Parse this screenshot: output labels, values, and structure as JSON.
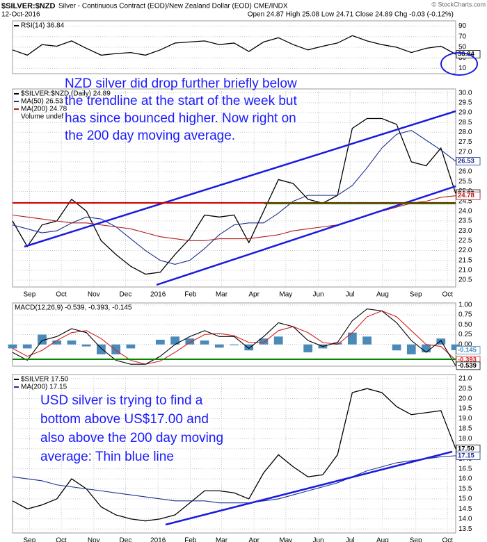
{
  "header": {
    "symbol": "$SILVER:$NZD",
    "description": "Silver - Continuous Contract (EOD)/New Zealand Dollar (EOD) CME/INDX",
    "copyright": "© StockCharts.com",
    "date": "12-Oct-2016",
    "quote": "Open 24.87 High 25.08 Low 24.71 Close 24.89 Chg -0.03 (-0.12%)"
  },
  "chart_data": [
    {
      "type": "line",
      "xlim": [
        0,
        30
      ],
      "ylim": [
        0,
        100
      ],
      "yticks": [
        90,
        70,
        50,
        30,
        10
      ],
      "grid": true,
      "series": [
        {
          "name": "RSI(14) 36.84",
          "color": "#000000",
          "values": [
            45,
            35,
            55,
            52,
            62,
            48,
            35,
            38,
            40,
            35,
            45,
            58,
            60,
            62,
            55,
            58,
            42,
            60,
            68,
            55,
            45,
            52,
            58,
            72,
            62,
            55,
            50,
            40,
            48,
            52,
            36.84
          ]
        }
      ]
    },
    {
      "type": "line",
      "xlim": [
        0,
        30
      ],
      "ylim": [
        20.15,
        30.2
      ],
      "grid": true,
      "yticks": [
        {
          "value": 30,
          "label": "30.0"
        },
        {
          "value": 29.5,
          "label": "29.5"
        },
        {
          "value": 29,
          "label": "29.0"
        },
        {
          "value": 28.5,
          "label": "28.5"
        },
        {
          "value": 28,
          "label": "28.0"
        },
        {
          "value": 27.5,
          "label": "27.5"
        },
        {
          "value": 27,
          "label": "27.0"
        },
        {
          "value": 26.5,
          "label": "26.5"
        },
        {
          "value": 26,
          "label": "26.0"
        },
        {
          "value": 25.5,
          "label": "25.5"
        },
        {
          "value": 25,
          "label": "25.0"
        },
        {
          "value": 24.5,
          "label": "24.5"
        },
        {
          "value": 24,
          "label": "24.0"
        },
        {
          "value": 23.5,
          "label": "23.5"
        },
        {
          "value": 23,
          "label": "23.0"
        },
        {
          "value": 22.5,
          "label": "22.5"
        },
        {
          "value": 22,
          "label": "22.0"
        },
        {
          "value": 21.5,
          "label": "21.5"
        },
        {
          "value": 21,
          "label": "21.0"
        },
        {
          "value": 20.5,
          "label": "20.5"
        }
      ],
      "xticks": [
        {
          "value": 1.15,
          "label": "Sep"
        },
        {
          "value": 3.3,
          "label": "Oct"
        },
        {
          "value": 5.5,
          "label": "Nov"
        },
        {
          "value": 7.65,
          "label": "Dec"
        },
        {
          "value": 9.85,
          "label": "2016"
        },
        {
          "value": 12.05,
          "label": "Feb"
        },
        {
          "value": 14.15,
          "label": "Mar"
        },
        {
          "value": 16.35,
          "label": "Apr"
        },
        {
          "value": 18.5,
          "label": "May"
        },
        {
          "value": 20.7,
          "label": "Jun"
        },
        {
          "value": 22.85,
          "label": "Jul"
        },
        {
          "value": 25.05,
          "label": "Aug"
        },
        {
          "value": 27.3,
          "label": "Sep"
        },
        {
          "value": 29.45,
          "label": "Oct"
        }
      ],
      "series": [
        {
          "name": "$SILVER:$NZD (Daily) 24.89",
          "color": "#000000",
          "values": [
            23.5,
            22.2,
            23.3,
            23.5,
            24.6,
            24.0,
            22.5,
            21.8,
            21.2,
            20.8,
            20.9,
            21.8,
            22.6,
            23.8,
            23.7,
            23.8,
            22.4,
            24.0,
            25.6,
            25.4,
            24.6,
            24.4,
            24.8,
            28.2,
            28.7,
            28.7,
            28.4,
            26.5,
            26.3,
            27.2,
            24.89
          ]
        },
        {
          "name": "MA(50) 26.53",
          "color": "#1c2f8f",
          "values": [
            23.3,
            23.1,
            22.9,
            23.0,
            23.4,
            23.7,
            23.6,
            23.2,
            22.6,
            22.0,
            21.5,
            21.3,
            21.5,
            22.1,
            22.8,
            23.3,
            23.4,
            23.4,
            23.9,
            24.5,
            24.8,
            24.8,
            24.8,
            25.3,
            26.2,
            27.2,
            27.9,
            28.1,
            27.6,
            27.1,
            26.53
          ]
        },
        {
          "name": "MA(200) 24.78",
          "color": "#b01c1c",
          "values": [
            23.8,
            23.7,
            23.6,
            23.5,
            23.4,
            23.4,
            23.3,
            23.2,
            23.1,
            22.9,
            22.7,
            22.6,
            22.5,
            22.5,
            22.6,
            22.6,
            22.6,
            22.7,
            22.8,
            23.0,
            23.1,
            23.2,
            23.3,
            23.5,
            23.8,
            24.0,
            24.2,
            24.4,
            24.5,
            24.7,
            24.78
          ]
        }
      ],
      "legend_note": "Volume undef",
      "annotation": [
        "NZD silver did drop further briefly below",
        "the trendline at the start of the week but",
        "has since bounced higher. Now right on",
        "the 200 day moving average."
      ]
    },
    {
      "type": "line",
      "title": "MACD(12,26,9) -0.539, -0.393, -0.145",
      "xlim": [
        0,
        30
      ],
      "ylim": [
        -0.55,
        1.05
      ],
      "grid": true,
      "yticks": [
        {
          "value": 1,
          "label": "1.00"
        },
        {
          "value": 0.75,
          "label": "0.75"
        },
        {
          "value": 0.5,
          "label": "0.50"
        },
        {
          "value": 0.25,
          "label": "0.25"
        },
        {
          "value": 0,
          "label": "0.00"
        }
      ],
      "series": [
        {
          "kind": "bar",
          "color": "#4a8ab8",
          "values": [
            -0.1,
            -0.1,
            0.25,
            0.1,
            0.1,
            -0.05,
            -0.25,
            -0.25,
            -0.1,
            0.0,
            0.12,
            0.2,
            0.15,
            0.1,
            -0.08,
            -0.02,
            -0.15,
            0.15,
            0.2,
            0.0,
            -0.2,
            -0.1,
            0.05,
            0.3,
            0.2,
            0.0,
            -0.15,
            -0.25,
            -0.2,
            0.15,
            -0.145
          ]
        },
        {
          "color": "#d42020",
          "values": [
            -0.1,
            -0.3,
            -0.15,
            0.1,
            0.3,
            0.35,
            0.15,
            -0.15,
            -0.4,
            -0.5,
            -0.42,
            -0.2,
            0.05,
            0.25,
            0.28,
            0.22,
            0.05,
            0.05,
            0.35,
            0.45,
            0.3,
            0.05,
            0.0,
            0.3,
            0.7,
            0.85,
            0.7,
            0.35,
            0.0,
            -0.05,
            -0.393
          ]
        },
        {
          "color": "#000000",
          "values": [
            -0.2,
            -0.4,
            0.1,
            0.2,
            0.4,
            0.3,
            -0.1,
            -0.4,
            -0.5,
            -0.5,
            -0.3,
            0.0,
            0.2,
            0.35,
            0.2,
            0.2,
            -0.1,
            0.2,
            0.55,
            0.45,
            0.1,
            -0.05,
            0.05,
            0.6,
            0.9,
            0.85,
            0.55,
            0.1,
            -0.2,
            0.1,
            -0.539
          ]
        }
      ]
    },
    {
      "type": "line",
      "xlim": [
        0,
        30
      ],
      "ylim": [
        13.3,
        21.2
      ],
      "grid": true,
      "yticks": [
        {
          "value": 21,
          "label": "21.0"
        },
        {
          "value": 20.5,
          "label": "20.5"
        },
        {
          "value": 20,
          "label": "20.0"
        },
        {
          "value": 19.5,
          "label": "19.5"
        },
        {
          "value": 19,
          "label": "19.0"
        },
        {
          "value": 18.5,
          "label": "18.5"
        },
        {
          "value": 18,
          "label": "18.0"
        },
        {
          "value": 17.5,
          "label": "17.5"
        },
        {
          "value": 17,
          "label": "17.0"
        },
        {
          "value": 16.5,
          "label": "16.5"
        },
        {
          "value": 16,
          "label": "16.0"
        },
        {
          "value": 15.5,
          "label": "15.5"
        },
        {
          "value": 15,
          "label": "15.0"
        },
        {
          "value": 14.5,
          "label": "14.5"
        },
        {
          "value": 14,
          "label": "14.0"
        },
        {
          "value": 13.5,
          "label": "13.5"
        }
      ],
      "xticks": [
        {
          "value": 1.15,
          "label": "Sep"
        },
        {
          "value": 3.3,
          "label": "Oct"
        },
        {
          "value": 5.5,
          "label": "Nov"
        },
        {
          "value": 7.65,
          "label": "Dec"
        },
        {
          "value": 9.85,
          "label": "2016"
        },
        {
          "value": 12.05,
          "label": "Feb"
        },
        {
          "value": 14.15,
          "label": "Mar"
        },
        {
          "value": 16.35,
          "label": "Apr"
        },
        {
          "value": 18.5,
          "label": "May"
        },
        {
          "value": 20.7,
          "label": "Jun"
        },
        {
          "value": 22.85,
          "label": "Jul"
        },
        {
          "value": 25.05,
          "label": "Aug"
        },
        {
          "value": 27.3,
          "label": "Sep"
        },
        {
          "value": 29.45,
          "label": "Oct"
        }
      ],
      "series": [
        {
          "name": "$SILVER 17.50",
          "color": "#000000",
          "values": [
            14.9,
            14.5,
            14.7,
            15.0,
            16.0,
            15.5,
            14.6,
            14.2,
            14.0,
            13.9,
            14.0,
            14.2,
            14.8,
            15.4,
            15.4,
            15.3,
            15.0,
            16.3,
            17.2,
            16.6,
            16.1,
            16.2,
            17.2,
            20.3,
            20.5,
            20.3,
            19.6,
            19.2,
            19.3,
            19.4,
            17.5
          ],
          "value_labels": [
            null,
            null,
            null,
            null,
            null,
            null,
            null,
            null,
            null,
            null,
            null,
            null,
            null,
            null,
            null,
            null,
            null,
            null,
            null,
            null,
            null,
            null,
            null,
            null,
            null,
            null,
            null,
            null,
            null,
            null,
            "17.50"
          ]
        },
        {
          "name": "MA(200) 17.15",
          "color": "#1c2f8f",
          "values": [
            16.1,
            16.0,
            15.9,
            15.7,
            15.6,
            15.5,
            15.4,
            15.3,
            15.2,
            15.1,
            15.0,
            14.9,
            14.9,
            14.9,
            14.8,
            14.8,
            14.8,
            14.9,
            15.0,
            15.2,
            15.4,
            15.6,
            15.8,
            16.1,
            16.4,
            16.6,
            16.8,
            16.9,
            17.0,
            17.1,
            17.15
          ]
        }
      ],
      "annotation": [
        "USD silver is trying to find a",
        "bottom above US$17.00 and",
        "also above the 200 day moving",
        "average: Thin blue line"
      ]
    }
  ]
}
